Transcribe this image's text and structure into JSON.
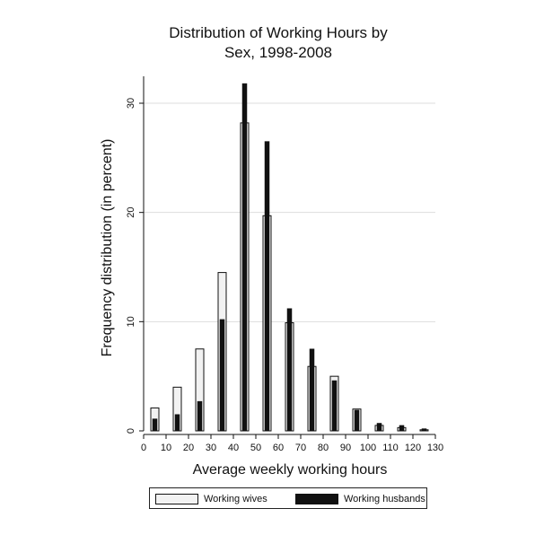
{
  "chart_data": {
    "type": "bar",
    "title": [
      "Distribution of Working Hours by",
      "Sex, 1998-2008"
    ],
    "xlabel": "Average weekly working hours",
    "ylabel": "Frequency distribution (in percent)",
    "xlim": [
      0,
      130
    ],
    "ylim": [
      0,
      32
    ],
    "xticks": [
      0,
      10,
      20,
      30,
      40,
      50,
      60,
      70,
      80,
      90,
      100,
      110,
      120,
      130
    ],
    "yticks": [
      0,
      10,
      20,
      30
    ],
    "grid": true,
    "legend_position": "bottom",
    "x": [
      5,
      15,
      25,
      35,
      45,
      55,
      65,
      75,
      85,
      95,
      105,
      115,
      125
    ],
    "series": [
      {
        "name": "Working wives",
        "color": "#f2f2f2",
        "values": [
          2.1,
          4.0,
          7.5,
          14.5,
          28.2,
          19.7,
          9.9,
          5.9,
          5.0,
          2.0,
          0.5,
          0.3,
          0.1
        ]
      },
      {
        "name": "Working husbands",
        "color": "#111111",
        "values": [
          1.1,
          1.5,
          2.7,
          10.2,
          31.8,
          26.5,
          11.2,
          7.5,
          4.6,
          1.9,
          0.7,
          0.5,
          0.2
        ]
      }
    ]
  }
}
